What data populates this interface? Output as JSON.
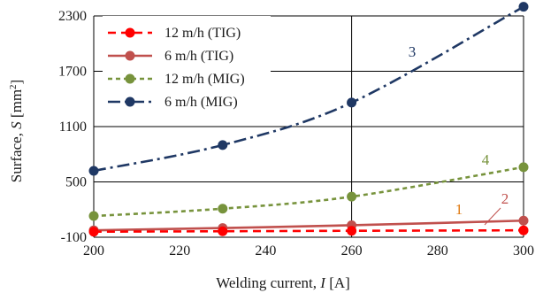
{
  "chart_data": {
    "type": "line",
    "xlabel_prefix": "Welding current, ",
    "xlabel_var": "I",
    "xlabel_unit": " [A]",
    "ylabel_prefix": "Surface, ",
    "ylabel_var": "S",
    "ylabel_unit": " [mm",
    "ylabel_sup": "2",
    "ylabel_close": "]",
    "xlim": [
      200,
      300
    ],
    "ylim": [
      -100,
      2300
    ],
    "xticks": [
      200,
      220,
      240,
      260,
      280,
      300
    ],
    "yticks": [
      -100,
      500,
      1100,
      1700,
      2300
    ],
    "xgrid": [
      260,
      300
    ],
    "grid": true,
    "legend_position": "top-left",
    "series": [
      {
        "name": "12 m/h (TIG)",
        "color": "#ff0000",
        "dash": "dash",
        "x": [
          200,
          230,
          260,
          300
        ],
        "y": [
          -40,
          -35,
          -30,
          -25
        ],
        "annotation": "1",
        "annotation_color": "#e07a10"
      },
      {
        "name": "6 m/h (TIG)",
        "color": "#c0504d",
        "dash": "solid",
        "x": [
          200,
          230,
          260,
          300
        ],
        "y": [
          -25,
          0,
          30,
          80
        ],
        "annotation": "2",
        "annotation_color": "#c0504d"
      },
      {
        "name": "12 m/h (MIG)",
        "color": "#77933c",
        "dash": "short-dash",
        "x": [
          200,
          230,
          260,
          300
        ],
        "y": [
          130,
          210,
          340,
          660
        ],
        "annotation": "4",
        "annotation_color": "#77933c"
      },
      {
        "name": "6 m/h (MIG)",
        "color": "#1f3864",
        "dash": "dash-dot",
        "x": [
          200,
          230,
          260,
          300
        ],
        "y": [
          620,
          900,
          1360,
          2400
        ],
        "annotation": "3",
        "annotation_color": "#1f3864"
      }
    ]
  }
}
